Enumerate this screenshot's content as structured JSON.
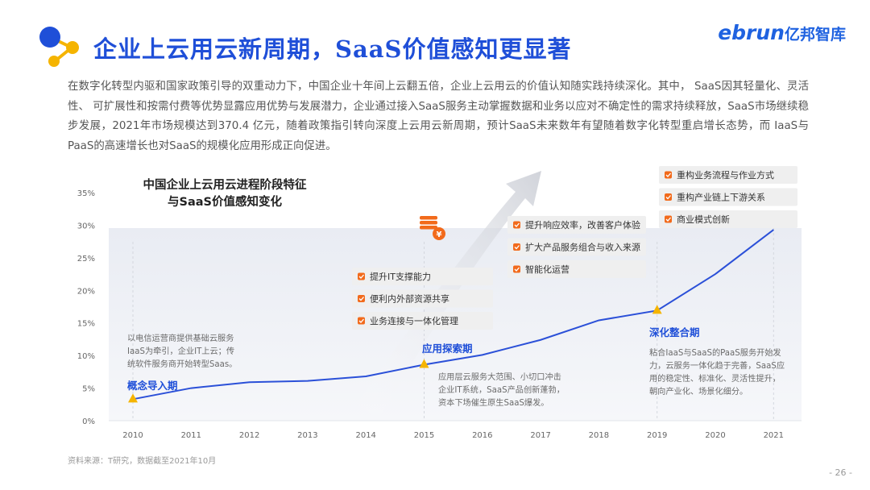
{
  "header": {
    "title": "企业上云用云新周期，SaaS价值感知更显著",
    "brand_en": "ebrun",
    "brand_cn": "亿邦智库"
  },
  "intro": "在数字化转型内驱和国家政策引导的双重动力下，中国企业十年间上云翻五倍，企业上云用云的价值认知随实践持续深化。其中，  SaaS因其轻量化、灵活性、 可扩展性和按需付费等优势显露应用优势与发展潜力，企业通过接入SaaS服务主动掌握数据和业务以应对不确定性的需求持续释放，SaaS市场继续稳步发展，2021年市场规模达到370.4 亿元，随着政策指引转向深度上云用云新周期，预计SaaS未来数年有望随着数字化转型重启增长态势，而 IaaS与PaaS的高速增长也对SaaS的规模化应用形成正向促进。",
  "chart_data": {
    "type": "line",
    "title": "中国企业上云用云进程阶段特征\n与SaaS价值感知变化",
    "x": [
      "2010",
      "2011",
      "2012",
      "2013",
      "2014",
      "2015",
      "2016",
      "2017",
      "2018",
      "2019",
      "2020",
      "2021"
    ],
    "y_ticks": [
      "0%",
      "5%",
      "10%",
      "15%",
      "20%",
      "25%",
      "30%",
      "35%"
    ],
    "ylim": [
      0,
      35
    ],
    "series": [
      {
        "values": [
          3.3,
          5.0,
          5.9,
          6.1,
          6.8,
          8.6,
          10.1,
          12.4,
          15.4,
          16.9,
          22.5,
          29.3
        ]
      }
    ],
    "stages": [
      {
        "name": "概念导入期",
        "year": "2010",
        "desc": [
          "以电信运营商提供基础云服务",
          "IaaS为牵引，企业IT上云；传",
          "统软件服务商开始转型Saas。"
        ]
      },
      {
        "name": "应用探索期",
        "year": "2015",
        "desc": [
          "应用层云服务大范围、小切口冲击",
          "企业IT系统，SaaS产品创新蓬勃，",
          "资本下场催生原生SaaS爆发。"
        ]
      },
      {
        "name": "深化整合期",
        "year": "2019",
        "desc": [
          "粘合IaaS与SaaS的PaaS服务开始发",
          "力，云服务一体化趋于完善，SaaS应",
          "用的稳定性、标准化、灵活性提升，",
          "朝向产业化、场景化细分。"
        ]
      }
    ],
    "value_boxes": [
      {
        "items": [
          "提升IT支撑能力",
          "便利内外部资源共享",
          "业务连接与一体化管理"
        ]
      },
      {
        "items": [
          "提升响应效率，改善客户体验",
          "扩大产品服务组合与收入来源",
          "智能化运营"
        ]
      },
      {
        "items": [
          "重构业务流程与作业方式",
          "重构产业链上下游关系",
          "商业模式创新"
        ]
      }
    ]
  },
  "footer": {
    "source": "资料来源：T研究，数据截至2021年10月",
    "page": "- 26 -"
  },
  "colors": {
    "accent_blue": "#1f4fd8",
    "line_blue": "#2b50d8",
    "marker_yellow": "#f5b400",
    "bullet_orange": "#f26a1b",
    "box_bg": "#efefef"
  }
}
